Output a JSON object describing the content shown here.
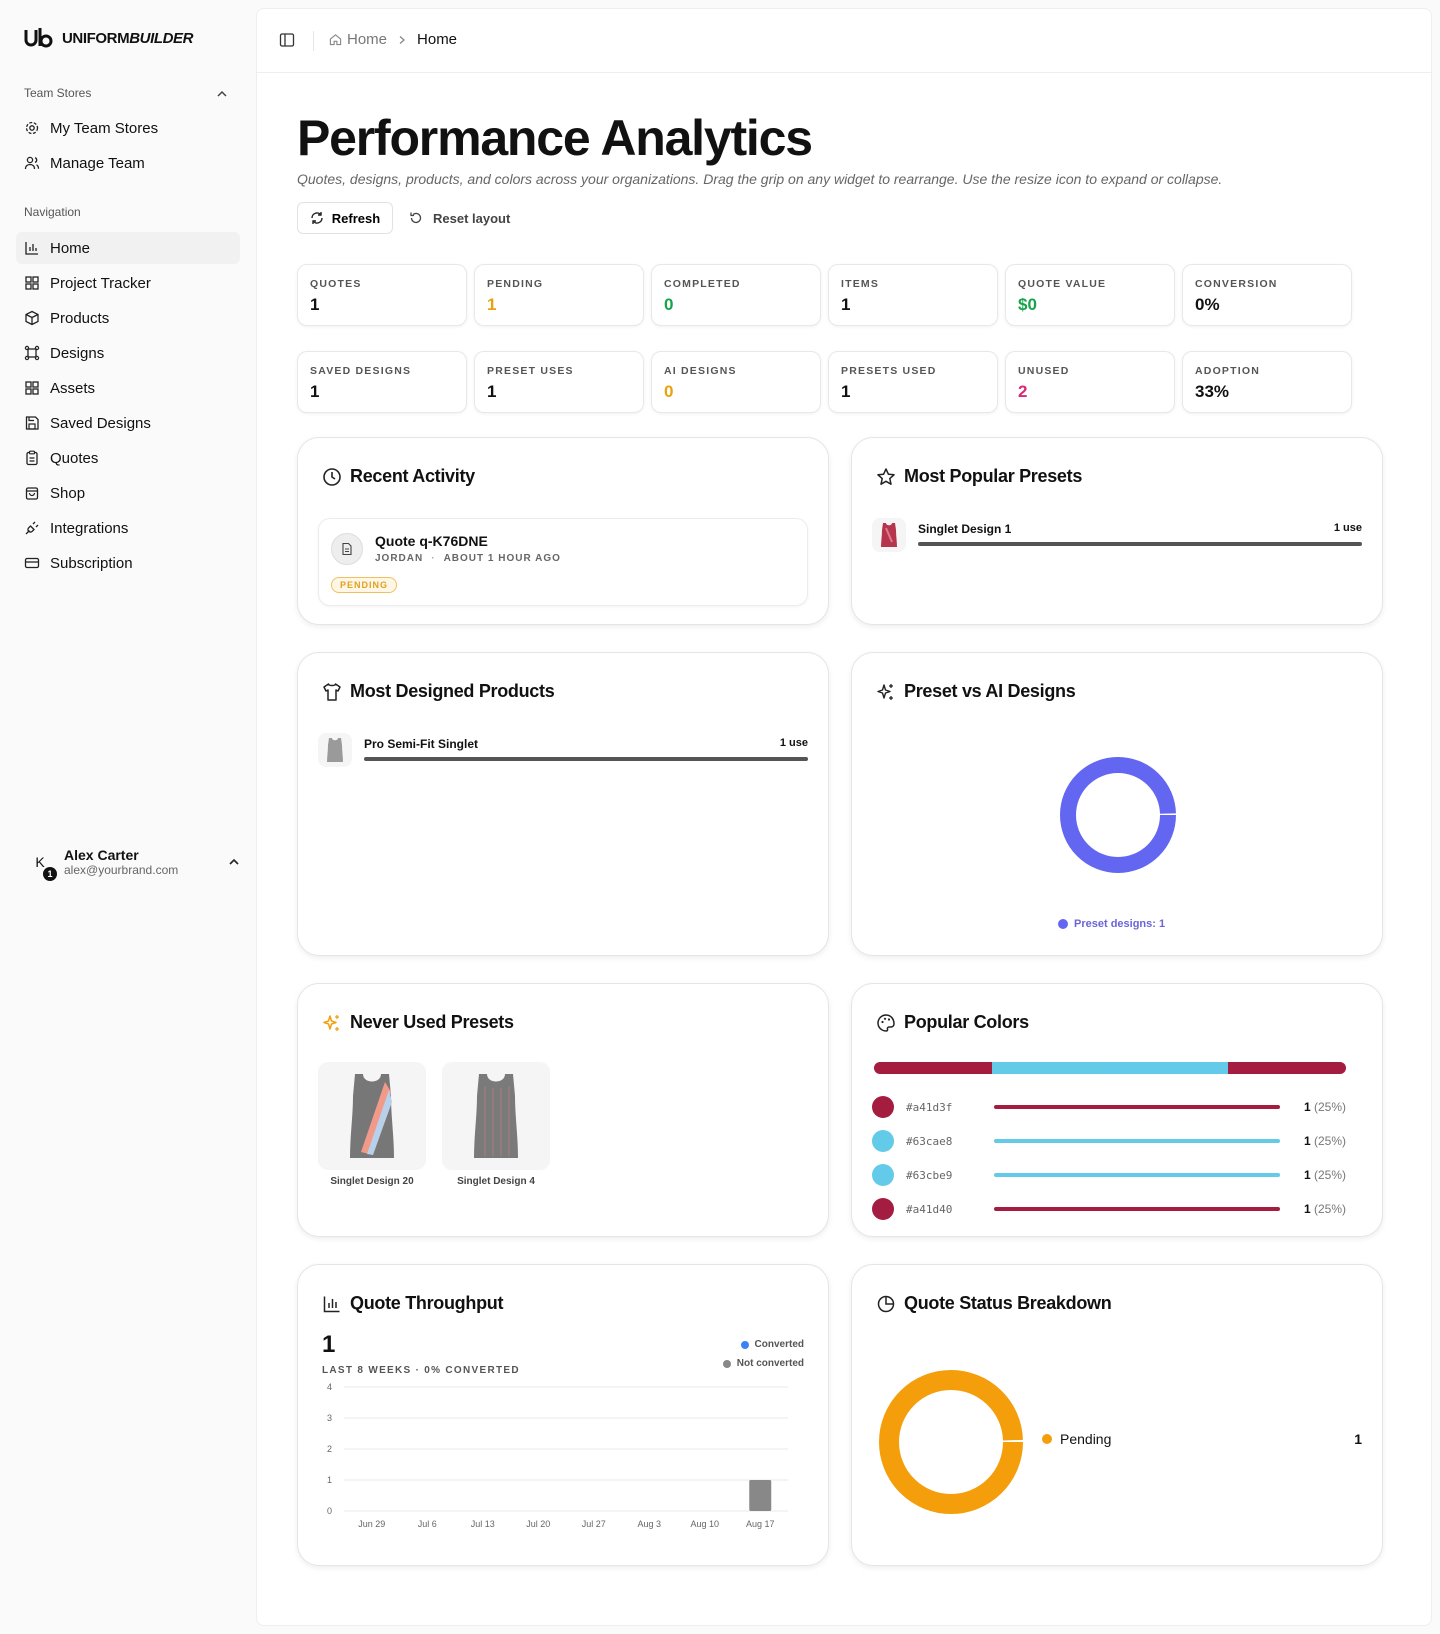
{
  "brand": {
    "name_plain": "UNIFORM",
    "name_emph": "BUILDER"
  },
  "sidebar": {
    "group_team_stores": "Team Stores",
    "team_items": [
      {
        "label": "My Team Stores",
        "icon": "gear-icon"
      },
      {
        "label": "Manage Team",
        "icon": "users-icon"
      }
    ],
    "group_navigation": "Navigation",
    "nav_items": [
      {
        "label": "Home",
        "icon": "chart-icon",
        "active": true
      },
      {
        "label": "Project Tracker",
        "icon": "grid-icon"
      },
      {
        "label": "Products",
        "icon": "package-icon"
      },
      {
        "label": "Designs",
        "icon": "frame-icon"
      },
      {
        "label": "Assets",
        "icon": "grid-icon"
      },
      {
        "label": "Saved Designs",
        "icon": "save-icon"
      },
      {
        "label": "Quotes",
        "icon": "clipboard-icon"
      },
      {
        "label": "Shop",
        "icon": "bag-icon"
      },
      {
        "label": "Integrations",
        "icon": "plug-icon"
      },
      {
        "label": "Subscription",
        "icon": "card-icon"
      }
    ],
    "user": {
      "initial": "K",
      "badge": "1",
      "name": "Alex Carter",
      "email": "alex@yourbrand.com"
    }
  },
  "breadcrumb": {
    "home": "Home",
    "current": "Home"
  },
  "page": {
    "title": "Performance Analytics",
    "subtitle": "Quotes, designs, products, and colors across your organizations. Drag the grip on any widget to rearrange. Use the resize icon to expand or collapse.",
    "refresh_label": "Refresh",
    "reset_label": "Reset layout"
  },
  "stats_row1": [
    {
      "label": "QUOTES",
      "value": "1",
      "color": "#111111"
    },
    {
      "label": "PENDING",
      "value": "1",
      "color": "#e8a20c"
    },
    {
      "label": "COMPLETED",
      "value": "0",
      "color": "#16a34a"
    },
    {
      "label": "ITEMS",
      "value": "1",
      "color": "#111111"
    },
    {
      "label": "QUOTE VALUE",
      "value": "$0",
      "color": "#16a34a"
    },
    {
      "label": "CONVERSION",
      "value": "0%",
      "color": "#111111"
    }
  ],
  "stats_row2": [
    {
      "label": "SAVED DESIGNS",
      "value": "1",
      "color": "#111111"
    },
    {
      "label": "PRESET USES",
      "value": "1",
      "color": "#111111"
    },
    {
      "label": "AI DESIGNS",
      "value": "0",
      "color": "#e8a20c"
    },
    {
      "label": "PRESETS USED",
      "value": "1",
      "color": "#111111"
    },
    {
      "label": "UNUSED",
      "value": "2",
      "color": "#db2777"
    },
    {
      "label": "ADOPTION",
      "value": "33%",
      "color": "#111111"
    }
  ],
  "recent_activity": {
    "title": "Recent Activity",
    "item": {
      "title": "Quote q-K76DNE",
      "user": "JORDAN",
      "sep": "·",
      "time": "ABOUT 1 HOUR AGO",
      "status": "PENDING"
    }
  },
  "popular_presets": {
    "title": "Most Popular Presets",
    "items": [
      {
        "name": "Singlet Design 1",
        "count": "1 use",
        "share": 1.0
      }
    ]
  },
  "designed_products": {
    "title": "Most Designed Products",
    "items": [
      {
        "name": "Pro Semi-Fit Singlet",
        "count": "1 use",
        "share": 1.0
      }
    ]
  },
  "preset_vs_ai": {
    "title": "Preset vs AI Designs",
    "legend": "Preset designs: 1",
    "segments": [
      {
        "value": 1,
        "color": "#6366f1"
      }
    ]
  },
  "never_used": {
    "title": "Never Used Presets",
    "items": [
      {
        "name": "Singlet Design 20"
      },
      {
        "name": "Singlet Design 4"
      }
    ]
  },
  "popular_colors": {
    "title": "Popular Colors",
    "items": [
      {
        "hex": "#a41d3f",
        "count": "1",
        "pct": "(25%)"
      },
      {
        "hex": "#63cae8",
        "count": "1",
        "pct": "(25%)"
      },
      {
        "hex": "#63cbe9",
        "count": "1",
        "pct": "(25%)"
      },
      {
        "hex": "#a41d40",
        "count": "1",
        "pct": "(25%)"
      }
    ]
  },
  "throughput": {
    "title": "Quote Throughput",
    "total": "1",
    "subtitle": "LAST 8 WEEKS · 0% CONVERTED",
    "legend_converted": "Converted",
    "legend_not_converted": "Not converted",
    "converted_color": "#3b82f6",
    "not_converted_color": "#888888"
  },
  "status_breakdown": {
    "title": "Quote Status Breakdown",
    "items": [
      {
        "label": "Pending",
        "value": "1",
        "color": "#f59e0b"
      }
    ]
  },
  "chart_data": [
    {
      "type": "bar",
      "categories": [
        "Jun 29",
        "Jul 6",
        "Jul 13",
        "Jul 20",
        "Jul 27",
        "Aug 3",
        "Aug 10",
        "Aug 17"
      ],
      "series": [
        {
          "name": "Converted",
          "values": [
            0,
            0,
            0,
            0,
            0,
            0,
            0,
            0
          ]
        },
        {
          "name": "Not converted",
          "values": [
            0,
            0,
            0,
            0,
            0,
            0,
            0,
            1
          ]
        }
      ],
      "yticks": [
        0,
        1,
        2,
        3,
        4
      ],
      "ylim": [
        0,
        4
      ],
      "grid": true,
      "legend": "top-right"
    },
    {
      "type": "pie",
      "labels": [
        "Preset designs"
      ],
      "values": [
        1
      ]
    },
    {
      "type": "pie",
      "labels": [
        "Pending"
      ],
      "values": [
        1
      ]
    }
  ]
}
